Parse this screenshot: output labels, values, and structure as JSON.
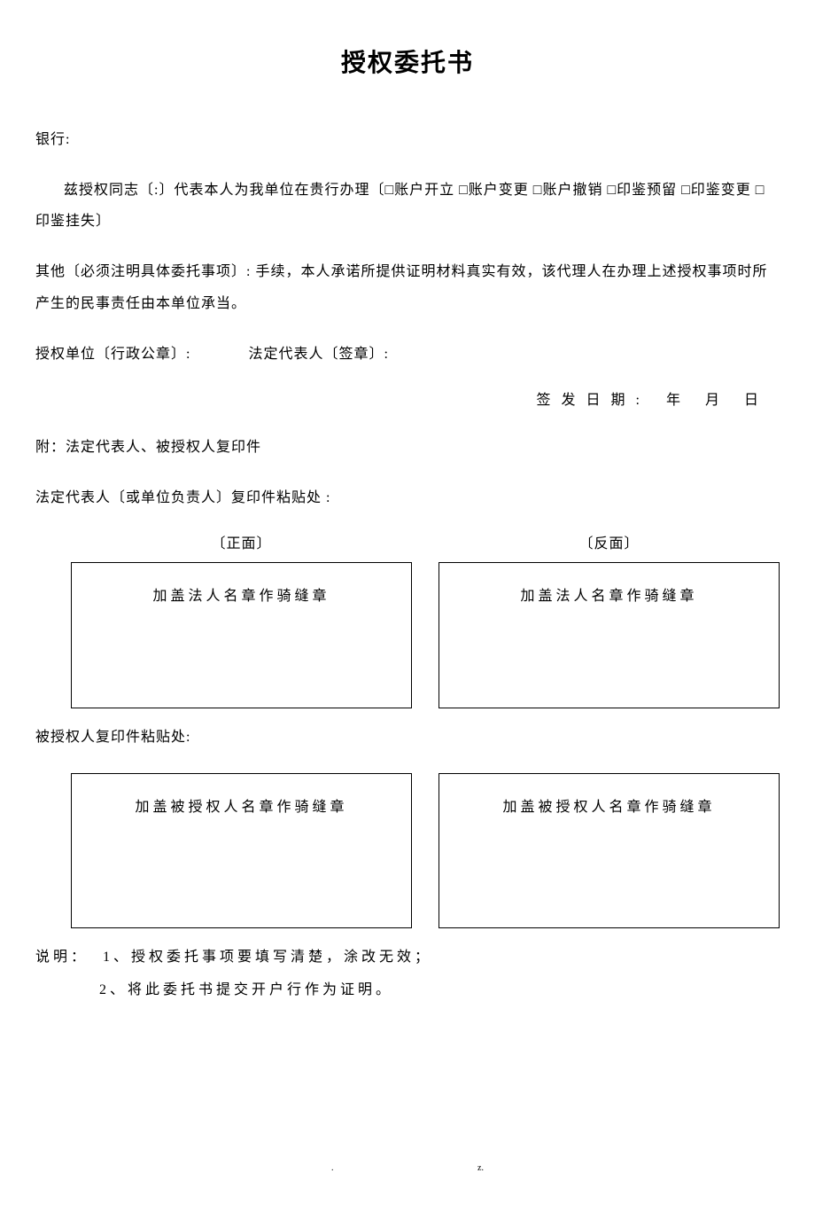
{
  "title": "授权委托书",
  "bank_label": "银行:",
  "body1": "兹授权同志〔:〕代表本人为我单位在贵行办理〔□账户开立 □账户变更 □账户撤销 □印鉴预留 □印鉴变更 □印鉴挂失〕",
  "body2": "其他〔必须注明具体委托事项〕: 手续，本人承诺所提供证明材料真实有效，该代理人在办理上述授权事项时所产生的民事责任由本单位承当。",
  "auth_unit": "授权单位〔行政公章〕:",
  "legal_rep": "法定代表人〔签章〕:",
  "issue_date_label": "签发日期:",
  "year": "年",
  "month": "月",
  "day": "日",
  "attachment_label": "附：法定代表人、被授权人复印件",
  "legal_rep_paste_label": "法定代表人〔或单位负责人〕复印件粘贴处 :",
  "front_label": "〔正面〕",
  "back_label": "〔反面〕",
  "legal_stamp_text": "加盖法人名章作骑缝章",
  "authorized_paste_label": "被授权人复印件粘贴处:",
  "authorized_stamp_text": "加盖被授权人名章作骑缝章",
  "notes_label": "说明：",
  "note1": "1、授权委托事项要填写清楚，涂改无效；",
  "note2": "2、将此委托书提交开户行作为证明。",
  "footer_mark1": ".",
  "footer_mark2": "z.",
  "colors": {
    "text": "#000000",
    "background": "#ffffff",
    "border": "#000000"
  },
  "typography": {
    "title_fontsize": 28,
    "body_fontsize": 16,
    "font_family": "SimSun"
  }
}
